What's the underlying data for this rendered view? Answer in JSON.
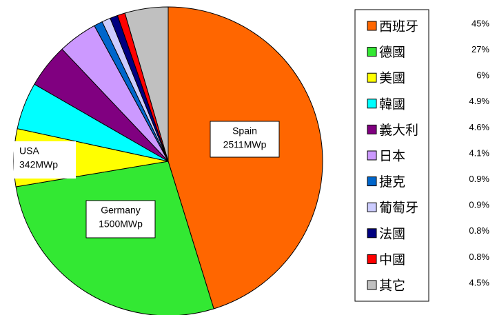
{
  "chart_data": {
    "type": "pie",
    "categories": [
      "西班牙",
      "德國",
      "美國",
      "韓國",
      "義大利",
      "日本",
      "捷克",
      "葡萄牙",
      "法國",
      "中國",
      "其它"
    ],
    "values": [
      45,
      27,
      6,
      4.9,
      4.6,
      4.1,
      0.9,
      0.9,
      0.8,
      0.8,
      4.5
    ],
    "value_labels": [
      "45%",
      "27%",
      "6%",
      "4.9%",
      "4.6%",
      "4.1%",
      "0.9%",
      "0.9%",
      "0.8%",
      "0.8%",
      "4.5%"
    ],
    "colors": [
      "#ff6600",
      "#33e833",
      "#ffff00",
      "#00ffff",
      "#800080",
      "#cc99ff",
      "#0066cc",
      "#ccccff",
      "#000080",
      "#ff0000",
      "#c0c0c0"
    ],
    "annotations": [
      [
        "Spain",
        "2511MWp"
      ],
      [
        "Germany",
        "1500MWp"
      ],
      [
        "USA",
        "342MWp"
      ]
    ],
    "legend": "right"
  }
}
